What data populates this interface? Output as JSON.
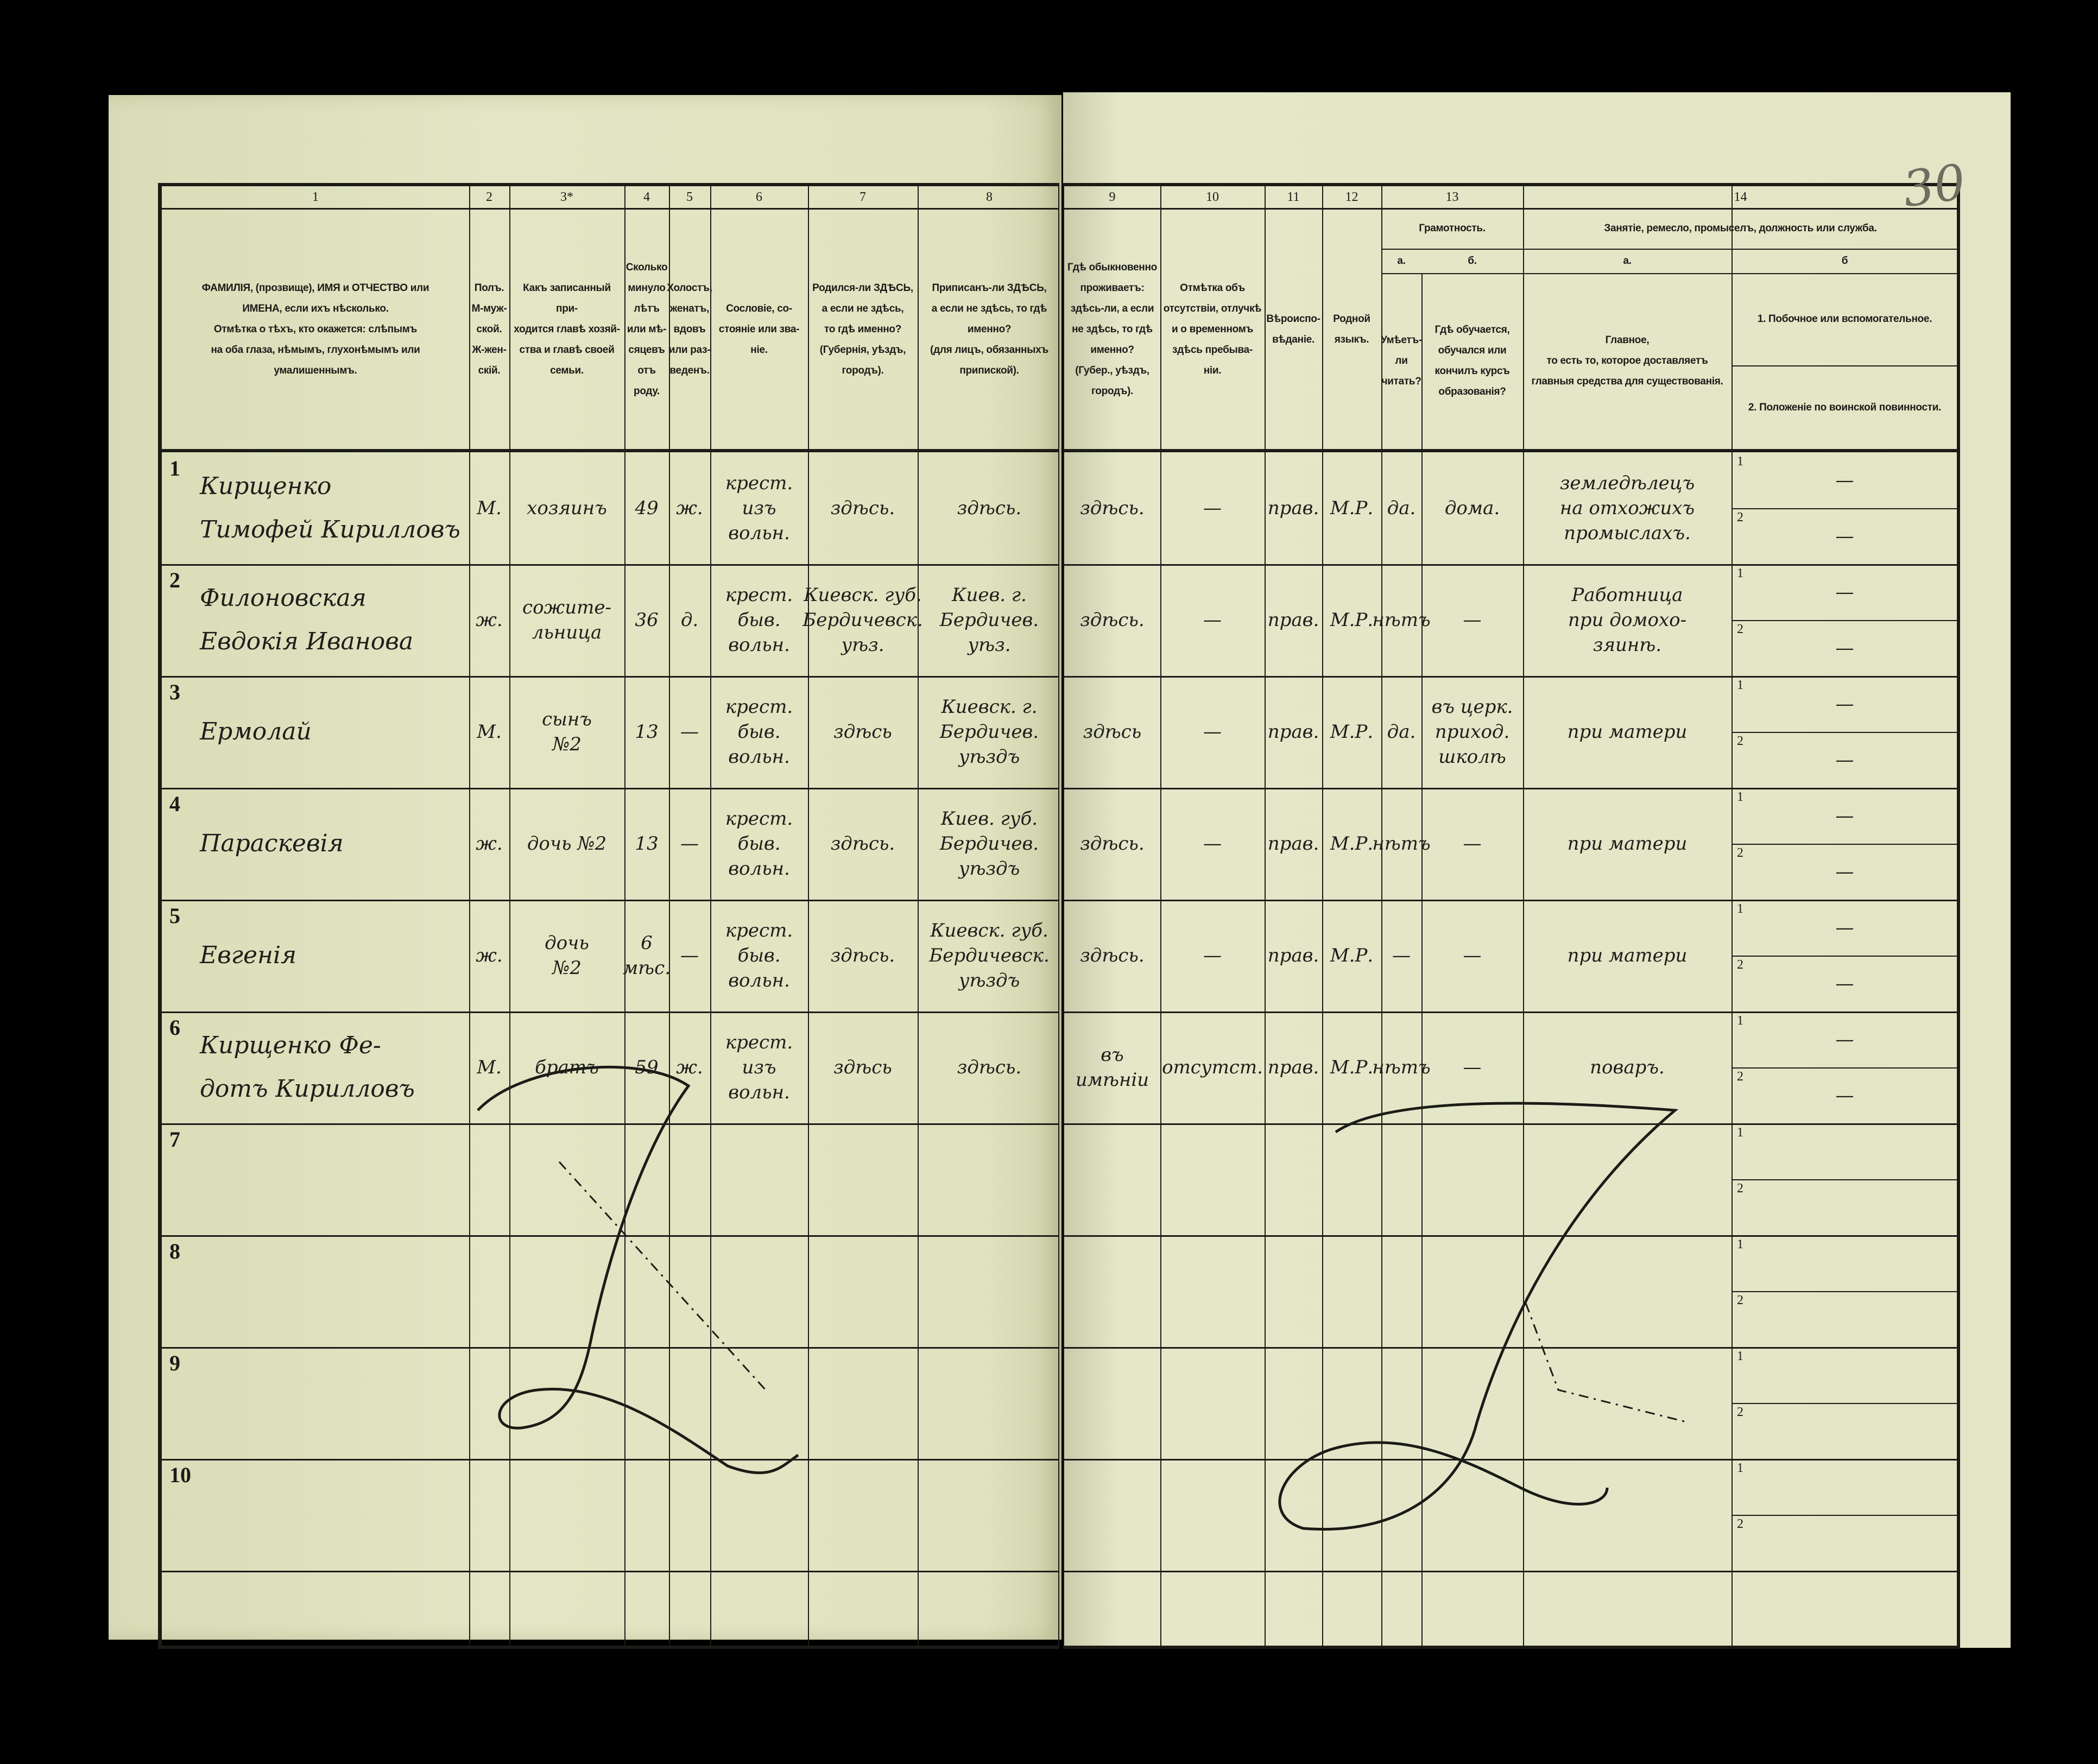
{
  "page_number_pencil": "30",
  "left_header": [
    {
      "num": "1",
      "text": "ФАМИЛІЯ, (прозвище), ИМЯ и ОТЧЕСТВО или\nИМЕНА, если ихъ нѣсколько.\nОтмѣтка о тѣхъ, кто окажется: слѣпымъ\nна оба глаза, нѣмымъ, глухонѣмымъ или\nумалишеннымъ."
    },
    {
      "num": "2",
      "text": "Полъ.\nМ-муж-\nской.\nЖ-жен-\nскій."
    },
    {
      "num": "3*",
      "text": "Какъ записанный при-\nходится главѣ хозяй-\nства и главѣ своей\nсемьи."
    },
    {
      "num": "4",
      "text": "Сколько\nминуло\nлѣтъ\nили мѣ-\nсяцевъ\nотъ роду."
    },
    {
      "num": "5",
      "text": "Холостъ,\nженатъ,\nвдовъ\nили раз-\nведенъ."
    },
    {
      "num": "6",
      "text": "Сословіе, со-\nстояніе или зва-\nніе."
    },
    {
      "num": "7",
      "text": "Родился-ли ЗДѢСЬ,\nа если не здѣсь,\nто гдѣ именно?\n(Губернія, уѣздъ, городъ)."
    },
    {
      "num": "8",
      "text": "Приписанъ-ли ЗДѢСЬ,\nа если не здѣсь, то гдѣ\nименно?\n(для лицъ, обязанныхъ\nприпиской)."
    }
  ],
  "right_header": [
    {
      "num": "9",
      "text": "Гдѣ обыкновенно\nпроживаетъ:\nздѣсь-ли, а если\nне здѣсь, то гдѣ\nименно?\n(Губер., уѣздъ, городъ)."
    },
    {
      "num": "10",
      "text": "Отмѣтка объ\nотсутствіи, отлучкѣ\nи о временномъ\nздѣсь пребыва-\nніи."
    },
    {
      "num": "11",
      "text": "Вѣроиспо-\nвѣданіе."
    },
    {
      "num": "12",
      "text": "Родной\nязыкъ."
    }
  ],
  "literacy": {
    "num": "13",
    "title": "Грамотность.",
    "a_label": "а.",
    "b_label": "б.",
    "a_text": "Умѣетъ-\nли\nчитать?",
    "b_text": "Гдѣ обучается,\nобучался или\nкончилъ курсъ\nобразованія?"
  },
  "occupation": {
    "num": "14",
    "title": "Занятіе, ремесло, промыселъ, должность или служба.",
    "a_label": "а.",
    "b_label": "б",
    "a_text": "Главное,\nто есть то, которое доставляетъ\nглавныя средства для существованія.",
    "b1_text": "1. Побочное или вспомогательное.",
    "b2_text": "2. Положеніе по воинской повинности."
  },
  "sub_labels": [
    "1",
    "2"
  ],
  "rows": [
    {
      "n": "1",
      "name": "Кирщенко\nТимофей Кирилловъ",
      "sex": "М.",
      "relation": "хозяинъ",
      "age": "49",
      "marital": "ж.",
      "estate": "крест.\nизъ\nвольн.",
      "birthplace": "здѣсь.",
      "registered": "здѣсь.",
      "residence": "здѣсь.",
      "absence": "—",
      "religion": "прав.",
      "language": "М.Р.",
      "literate": "да.",
      "school": "дома.",
      "occupation": "земледѣлецъ\nна отхожихъ\nпромыслахъ.",
      "secondary": "—",
      "military": "—"
    },
    {
      "n": "2",
      "name": "Филоновская\nЕвдокія Иванова",
      "sex": "ж.",
      "relation": "сожите-\nльница",
      "age": "36",
      "marital": "д.",
      "estate": "крест.\nбыв.\nвольн.",
      "birthplace": "Киевск. губ.\nБердичевск.\nуѣз.",
      "registered": "Киев. г.\nБердичев.\nуѣз.",
      "residence": "здѣсь.",
      "absence": "—",
      "religion": "прав.",
      "language": "М.Р.",
      "literate": "нѣтъ",
      "school": "—",
      "occupation": "Работница\nпри домохо-\nзяинѣ.",
      "secondary": "—",
      "military": "—"
    },
    {
      "n": "3",
      "name": "Ермолай",
      "sex": "М.",
      "relation": "сынъ\n№2",
      "age": "13",
      "marital": "—",
      "estate": "крест.\nбыв.\nвольн.",
      "birthplace": "здѣсь",
      "registered": "Киевск. г.\nБердичев.\nуѣздъ",
      "residence": "здѣсь",
      "absence": "—",
      "religion": "прав.",
      "language": "М.Р.",
      "literate": "да.",
      "school": "въ церк.\nприход.\nшколѣ",
      "occupation": "при матери",
      "secondary": "—",
      "military": "—"
    },
    {
      "n": "4",
      "name": "Параскевія",
      "sex": "ж.",
      "relation": "дочь №2",
      "age": "13",
      "marital": "—",
      "estate": "крест.\nбыв.\nвольн.",
      "birthplace": "здѣсь.",
      "registered": "Киев. губ.\nБердичев.\nуѣздъ",
      "residence": "здѣсь.",
      "absence": "—",
      "religion": "прав.",
      "language": "М.Р.",
      "literate": "нѣтъ",
      "school": "—",
      "occupation": "при матери",
      "secondary": "—",
      "military": "—"
    },
    {
      "n": "5",
      "name": "Евгенія",
      "sex": "ж.",
      "relation": "дочь\n№2",
      "age": "6 мѣс.",
      "marital": "—",
      "estate": "крест.\nбыв.\nвольн.",
      "birthplace": "здѣсь.",
      "registered": "Киевск. губ.\nБердичевск.\nуѣздъ",
      "residence": "здѣсь.",
      "absence": "—",
      "religion": "прав.",
      "language": "М.Р.",
      "literate": "—",
      "school": "—",
      "occupation": "при матери",
      "secondary": "—",
      "military": "—"
    },
    {
      "n": "6",
      "name": "Кирщенко Фе-\nдотъ Кирилловъ",
      "sex": "М.",
      "relation": "братъ",
      "age": "59",
      "marital": "ж.",
      "estate": "крест.\nизъ\nвольн.",
      "birthplace": "здѣсь",
      "registered": "здѣсь.",
      "residence": "въ имѣніи",
      "absence": "отсутст.",
      "religion": "прав.",
      "language": "М.Р.",
      "literate": "нѣтъ",
      "school": "—",
      "occupation": "поваръ.",
      "secondary": "—",
      "military": "—"
    },
    {
      "n": "7"
    },
    {
      "n": "8"
    },
    {
      "n": "9"
    },
    {
      "n": "10"
    }
  ],
  "colors": {
    "paper": "#e3e5c4",
    "ink": "#1b1b17",
    "background": "#000000"
  }
}
